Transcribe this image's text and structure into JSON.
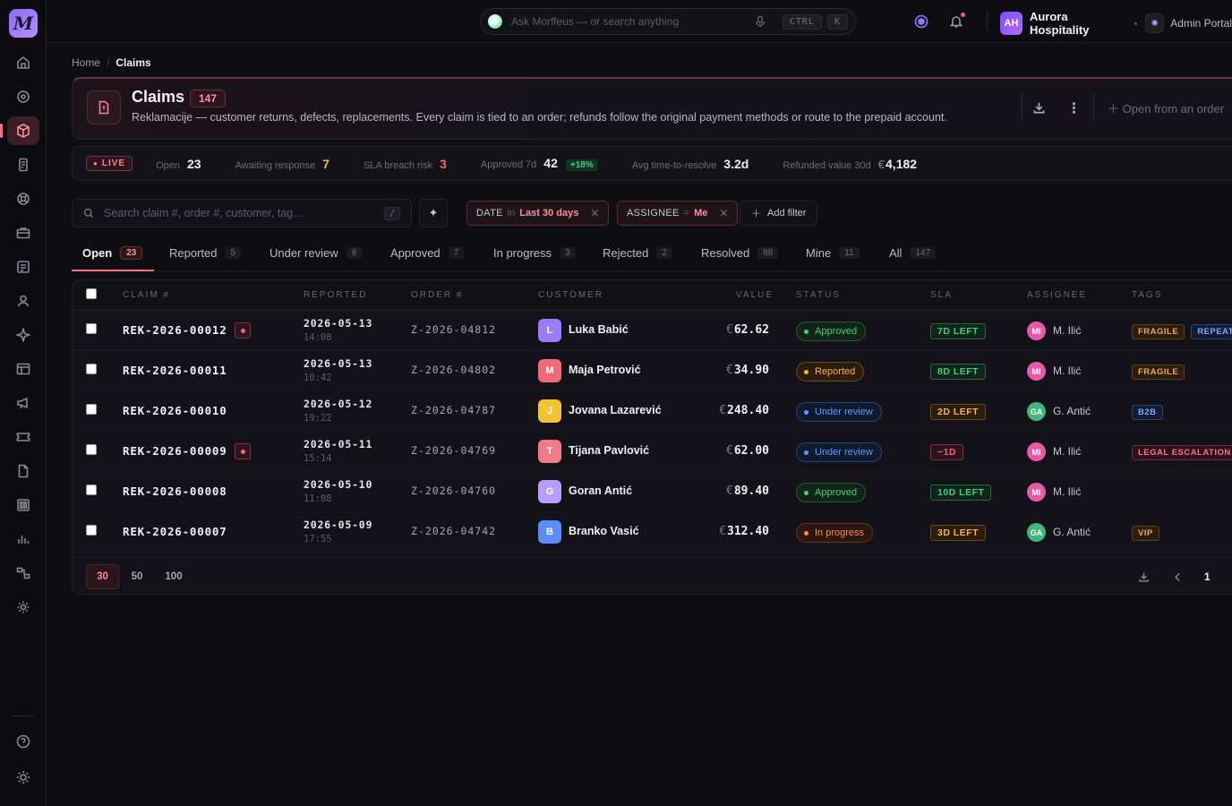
{
  "app": {
    "logo": "M"
  },
  "topbar": {
    "ask_placeholder": "Ask Morffeus — or search anything",
    "kbd_ctrl": "CTRL",
    "kbd_k": "K",
    "tenant_initials": "AH",
    "tenant_name": "Aurora Hospitality",
    "portal_label": "Admin Portal"
  },
  "breadcrumb": {
    "home": "Home",
    "sep": "/",
    "current": "Claims"
  },
  "header": {
    "title": "Claims",
    "count": "147",
    "subtitle": "Reklamacije — customer returns, defects, replacements. Every claim is tied to an order; refunds follow the original payment methods or route to the prepaid account.",
    "open_from_order": "Open from an order"
  },
  "stats": {
    "live": "LIVE",
    "items": [
      {
        "label": "Open",
        "value": "23",
        "tone": "normal"
      },
      {
        "label": "Awaiting response",
        "value": "7",
        "tone": "warn"
      },
      {
        "label": "SLA breach risk",
        "value": "3",
        "tone": "bad"
      },
      {
        "label": "Approved 7d",
        "value": "42",
        "tone": "normal",
        "delta": "+18%"
      },
      {
        "label": "Avg time-to-resolve",
        "value": "3.2d",
        "tone": "normal"
      },
      {
        "label": "Refunded value 30d",
        "currency": "€",
        "value": "4,182",
        "tone": "normal"
      }
    ]
  },
  "filters": {
    "search_placeholder": "Search claim #, order #, customer, tag…",
    "search_shortcut": "/",
    "chips": [
      {
        "key": "DATE",
        "op": "in",
        "value": "Last 30 days"
      },
      {
        "key": "ASSIGNEE",
        "op": "=",
        "value": "Me"
      }
    ],
    "add_filter": "Add filter"
  },
  "tabs": [
    {
      "label": "Open",
      "count": "23"
    },
    {
      "label": "Reported",
      "count": "5"
    },
    {
      "label": "Under review",
      "count": "8"
    },
    {
      "label": "Approved",
      "count": "7"
    },
    {
      "label": "In progress",
      "count": "3"
    },
    {
      "label": "Rejected",
      "count": "2"
    },
    {
      "label": "Resolved",
      "count": "88"
    },
    {
      "label": "Mine",
      "count": "11"
    },
    {
      "label": "All",
      "count": "147"
    }
  ],
  "table": {
    "columns": [
      "CLAIM #",
      "REPORTED",
      "ORDER #",
      "CUSTOMER",
      "VALUE",
      "STATUS",
      "SLA",
      "ASSIGNEE",
      "TAGS"
    ],
    "rows": [
      {
        "claim": "REK-2026-00012",
        "flag": true,
        "date": "2026-05-13",
        "time": "14:08",
        "order": "Z-2026-04812",
        "initial": "L",
        "avatar_color": "#9b7bff",
        "customer": "Luka Babić",
        "currency": "€",
        "value": "62.62",
        "status": "Approved",
        "status_kind": "approved",
        "sla": "7D LEFT",
        "sla_kind": "green",
        "assignee_initials": "MI",
        "assignee_color": "#e85aa8",
        "assignee": "M. Ilić",
        "tags": [
          {
            "t": "FRAGILE",
            "k": "amber"
          },
          {
            "t": "REPEAT",
            "k": "blue"
          }
        ]
      },
      {
        "claim": "REK-2026-00011",
        "flag": false,
        "date": "2026-05-13",
        "time": "10:42",
        "order": "Z-2026-04802",
        "initial": "M",
        "avatar_color": "#f06b78",
        "customer": "Maja Petrović",
        "currency": "€",
        "value": "34.90",
        "status": "Reported",
        "status_kind": "reported",
        "sla": "8D LEFT",
        "sla_kind": "green",
        "assignee_initials": "MI",
        "assignee_color": "#e85aa8",
        "assignee": "M. Ilić",
        "tags": [
          {
            "t": "FRAGILE",
            "k": "amber"
          }
        ]
      },
      {
        "claim": "REK-2026-00010",
        "flag": false,
        "date": "2026-05-12",
        "time": "19:22",
        "order": "Z-2026-04787",
        "initial": "J",
        "avatar_color": "#f2c230",
        "customer": "Jovana Lazarević",
        "currency": "€",
        "value": "248.40",
        "status": "Under review",
        "status_kind": "review",
        "sla": "2D LEFT",
        "sla_kind": "amber",
        "assignee_initials": "GA",
        "assignee_color": "#3fb87a",
        "assignee": "G. Antić",
        "tags": [
          {
            "t": "B2B",
            "k": "blue"
          }
        ]
      },
      {
        "claim": "REK-2026-00009",
        "flag": true,
        "date": "2026-05-11",
        "time": "15:14",
        "order": "Z-2026-04769",
        "initial": "T",
        "avatar_color": "#f07a8a",
        "customer": "Tijana Pavlović",
        "currency": "€",
        "value": "62.00",
        "status": "Under review",
        "status_kind": "review",
        "sla": "−1D",
        "sla_kind": "red",
        "assignee_initials": "MI",
        "assignee_color": "#e85aa8",
        "assignee": "M. Ilić",
        "tags": [
          {
            "t": "LEGAL ESCALATION",
            "k": "red"
          }
        ]
      },
      {
        "claim": "REK-2026-00008",
        "flag": false,
        "date": "2026-05-10",
        "time": "11:08",
        "order": "Z-2026-04760",
        "initial": "G",
        "avatar_color": "#b79bff",
        "customer": "Goran Antić",
        "currency": "€",
        "value": "89.40",
        "status": "Approved",
        "status_kind": "approved",
        "sla": "10D LEFT",
        "sla_kind": "green",
        "assignee_initials": "MI",
        "assignee_color": "#e85aa8",
        "assignee": "M. Ilić",
        "tags": []
      },
      {
        "claim": "REK-2026-00007",
        "flag": false,
        "date": "2026-05-09",
        "time": "17:55",
        "order": "Z-2026-04742",
        "initial": "B",
        "avatar_color": "#5b8cff",
        "customer": "Branko Vasić",
        "currency": "€",
        "value": "312.40",
        "status": "In progress",
        "status_kind": "progress",
        "sla": "3D LEFT",
        "sla_kind": "amber",
        "assignee_initials": "GA",
        "assignee_color": "#3fb87a",
        "assignee": "G. Antić",
        "tags": [
          {
            "t": "VIP",
            "k": "amber"
          }
        ]
      }
    ]
  },
  "pager": {
    "sizes": [
      "30",
      "50",
      "100"
    ],
    "active_size": "30",
    "page": "1"
  },
  "colors": {
    "accent": "#ff6b86",
    "approved": "#43d17a",
    "warn": "#ffb04a",
    "info": "#5e9bff"
  }
}
